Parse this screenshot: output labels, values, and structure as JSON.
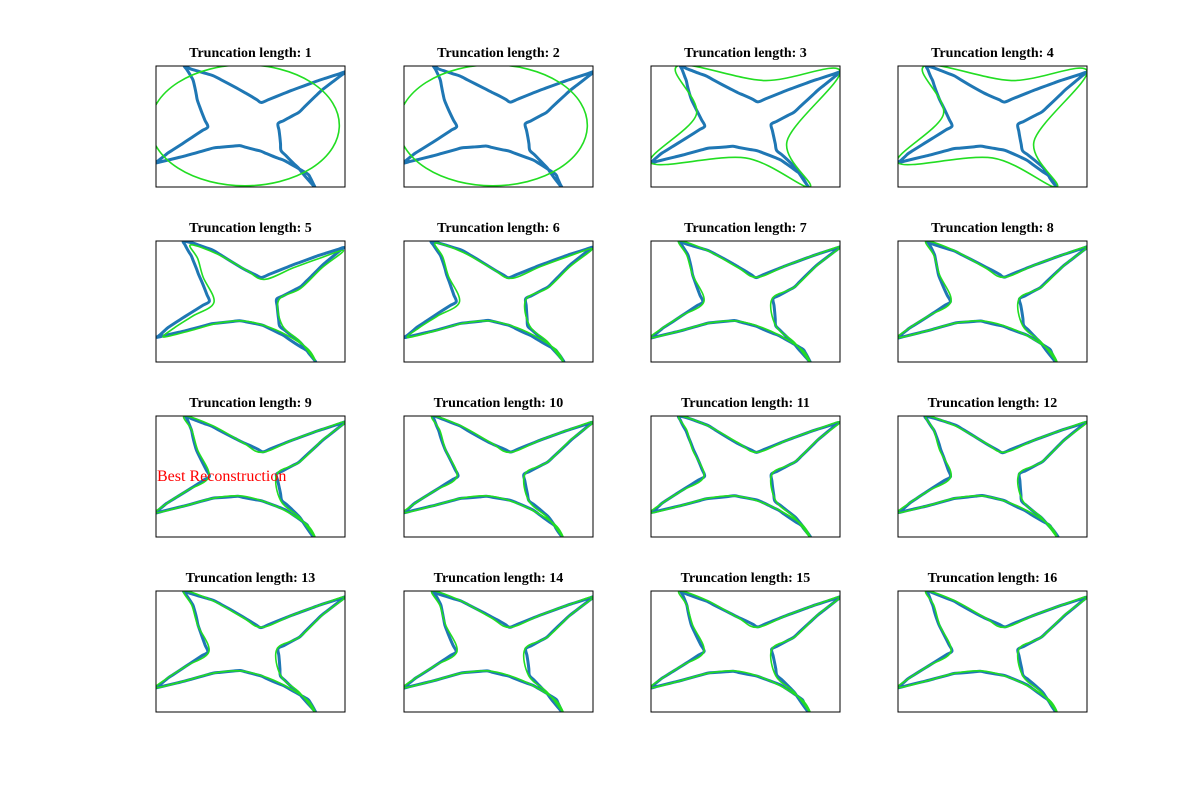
{
  "figure": {
    "background": "#ffffff"
  },
  "colors": {
    "original": "#1f77b4",
    "reconstruction": "#22dd22",
    "annotation": "#ff0000"
  },
  "chart_data": {
    "type": "line",
    "subplot_grid": "4x4",
    "grid": false,
    "axis_ticks": false,
    "legend": "none",
    "series": [
      {
        "role": "original contour",
        "color": "#1f77b4"
      },
      {
        "role": "truncated reconstruction",
        "color": "#22dd22"
      }
    ],
    "panels": [
      {
        "title": "Truncation length: 1",
        "truncation_length": 1
      },
      {
        "title": "Truncation length: 2",
        "truncation_length": 2
      },
      {
        "title": "Truncation length: 3",
        "truncation_length": 3
      },
      {
        "title": "Truncation length: 4",
        "truncation_length": 4
      },
      {
        "title": "Truncation length: 5",
        "truncation_length": 5
      },
      {
        "title": "Truncation length: 6",
        "truncation_length": 6
      },
      {
        "title": "Truncation length: 7",
        "truncation_length": 7
      },
      {
        "title": "Truncation length: 8",
        "truncation_length": 8
      },
      {
        "title": "Truncation length: 9",
        "truncation_length": 9,
        "annotation": "Best Reconstruction"
      },
      {
        "title": "Truncation length: 10",
        "truncation_length": 10
      },
      {
        "title": "Truncation length: 11",
        "truncation_length": 11
      },
      {
        "title": "Truncation length: 12",
        "truncation_length": 12
      },
      {
        "title": "Truncation length: 13",
        "truncation_length": 13
      },
      {
        "title": "Truncation length: 14",
        "truncation_length": 14
      },
      {
        "title": "Truncation length: 15",
        "truncation_length": 15
      },
      {
        "title": "Truncation length: 16",
        "truncation_length": 16
      }
    ]
  }
}
